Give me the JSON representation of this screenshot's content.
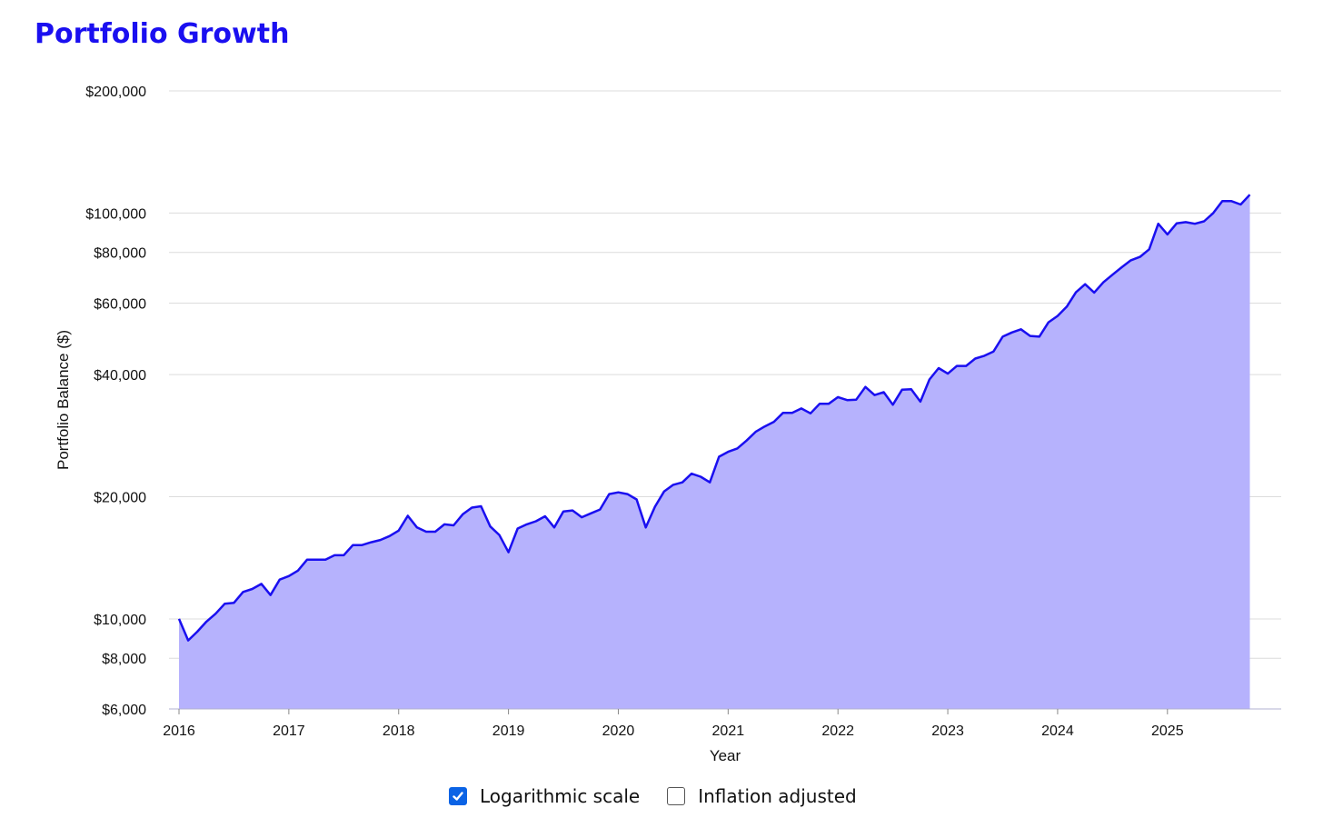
{
  "title": "Portfolio Growth",
  "controls": {
    "log_scale": {
      "label": "Logarithmic scale",
      "checked": true
    },
    "inflation": {
      "label": "Inflation adjusted",
      "checked": false
    }
  },
  "colors": {
    "title": "#1a0ff0",
    "line": "#1a0ff0",
    "area": "#b6b2fd",
    "grid": "#dcdcdc",
    "checkbox_checked": "#0b63e5"
  },
  "chart_data": {
    "type": "area",
    "scale": "log",
    "xlabel": "Year",
    "ylabel": "Portfolio Balance ($)",
    "xlim": [
      2016.0,
      2025.92
    ],
    "ylim": [
      6000,
      200000
    ],
    "grid": true,
    "x_ticks": [
      "2016",
      "2017",
      "2018",
      "2019",
      "2020",
      "2021",
      "2022",
      "2023",
      "2024",
      "2025"
    ],
    "y_ticks": [
      {
        "value": 6000,
        "label": "$6,000"
      },
      {
        "value": 8000,
        "label": "$8,000"
      },
      {
        "value": 10000,
        "label": "$10,000"
      },
      {
        "value": 20000,
        "label": "$20,000"
      },
      {
        "value": 40000,
        "label": "$40,000"
      },
      {
        "value": 60000,
        "label": "$60,000"
      },
      {
        "value": 80000,
        "label": "$80,000"
      },
      {
        "value": 100000,
        "label": "$100,000"
      },
      {
        "value": 200000,
        "label": "$200,000"
      }
    ],
    "series": [
      {
        "x_start": "2016-01",
        "step": "month",
        "values": [
          10000,
          8850,
          9300,
          9850,
          10300,
          10900,
          10950,
          11650,
          11850,
          12200,
          11450,
          12500,
          12750,
          13150,
          14000,
          14000,
          14000,
          14350,
          14350,
          15200,
          15200,
          15450,
          15650,
          16000,
          16500,
          17950,
          16800,
          16400,
          16400,
          17100,
          17000,
          18100,
          18800,
          18950,
          16900,
          16100,
          14600,
          16700,
          17100,
          17400,
          17900,
          16800,
          18400,
          18500,
          17800,
          18200,
          18600,
          20300,
          20500,
          20300,
          19700,
          16800,
          18900,
          20600,
          21400,
          21700,
          22800,
          22400,
          21700,
          25100,
          25800,
          26300,
          27500,
          28900,
          29800,
          30600,
          32200,
          32200,
          33000,
          32100,
          33900,
          33900,
          35200,
          34600,
          34700,
          37300,
          35600,
          36200,
          33700,
          36700,
          36800,
          34300,
          38900,
          41500,
          40200,
          42000,
          42000,
          43800,
          44500,
          45600,
          49600,
          50800,
          51700,
          49800,
          49600,
          53800,
          55800,
          58800,
          63800,
          66800,
          63700,
          67500,
          70500,
          73500,
          76500,
          78000,
          81400,
          94100,
          88600,
          94300,
          95000,
          94100,
          95400,
          100000,
          107000,
          107000,
          105000,
          111000
        ]
      }
    ]
  }
}
